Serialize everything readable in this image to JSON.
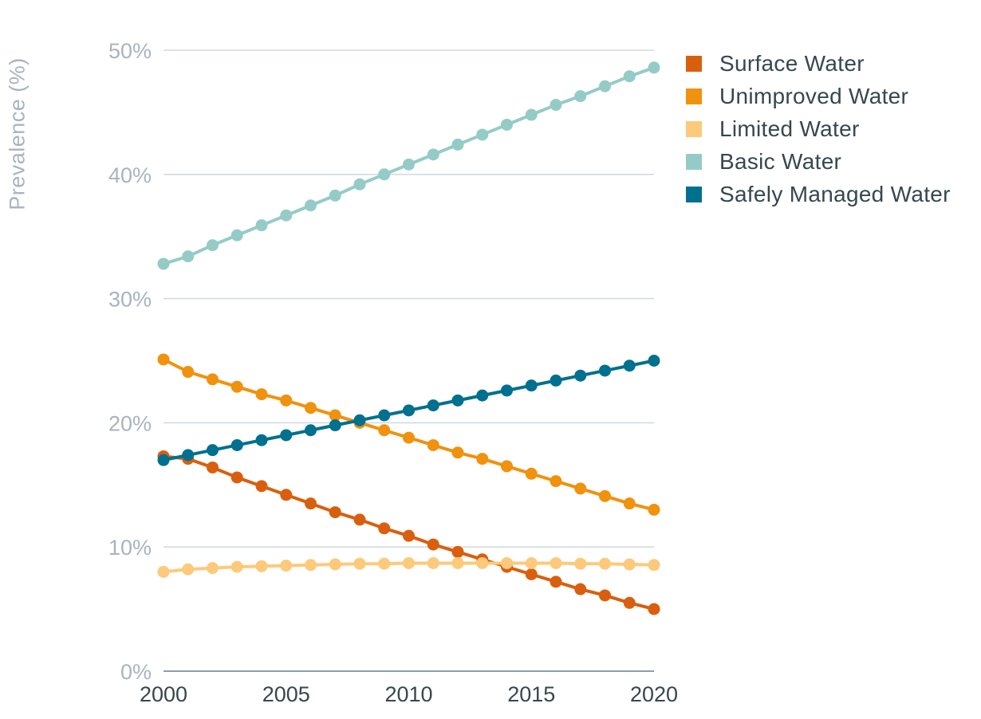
{
  "chart_data": {
    "type": "line",
    "ylabel": "Prevalence (%)",
    "xlabel": "",
    "x": [
      2000,
      2001,
      2002,
      2003,
      2004,
      2005,
      2006,
      2007,
      2008,
      2009,
      2010,
      2011,
      2012,
      2013,
      2014,
      2015,
      2016,
      2017,
      2018,
      2019,
      2020
    ],
    "xlim": [
      2000,
      2020
    ],
    "ylim": [
      0,
      50
    ],
    "x_ticks": [
      "2000",
      "2005",
      "2010",
      "2015",
      "2020"
    ],
    "y_ticks": [
      "0%",
      "10%",
      "20%",
      "30%",
      "40%",
      "50%"
    ],
    "grid": "horizontal",
    "legend_position": "right",
    "series": [
      {
        "name": "Surface Water",
        "color": "#d95f0e",
        "values": [
          17.3,
          17.1,
          16.4,
          15.6,
          14.9,
          14.2,
          13.5,
          12.8,
          12.2,
          11.5,
          10.9,
          10.2,
          9.6,
          9.0,
          8.4,
          7.8,
          7.2,
          6.6,
          6.1,
          5.5,
          5.0
        ]
      },
      {
        "name": "Unimproved Water",
        "color": "#f0920e",
        "values": [
          25.1,
          24.1,
          23.5,
          22.9,
          22.3,
          21.8,
          21.2,
          20.6,
          20.0,
          19.4,
          18.8,
          18.2,
          17.6,
          17.1,
          16.5,
          15.9,
          15.3,
          14.7,
          14.1,
          13.5,
          13.0
        ]
      },
      {
        "name": "Limited Water",
        "color": "#fdc97a",
        "values": [
          8.0,
          8.2,
          8.3,
          8.4,
          8.45,
          8.5,
          8.55,
          8.6,
          8.65,
          8.65,
          8.7,
          8.7,
          8.7,
          8.7,
          8.7,
          8.7,
          8.7,
          8.65,
          8.65,
          8.6,
          8.55
        ]
      },
      {
        "name": "Basic Water",
        "color": "#95cbc7",
        "values": [
          32.8,
          33.4,
          34.3,
          35.1,
          35.9,
          36.7,
          37.5,
          38.3,
          39.2,
          40.0,
          40.8,
          41.6,
          42.4,
          43.2,
          44.0,
          44.8,
          45.6,
          46.3,
          47.1,
          47.9,
          48.6
        ]
      },
      {
        "name": "Safely Managed Water",
        "color": "#00708f",
        "values": [
          17.0,
          17.4,
          17.8,
          18.2,
          18.6,
          19.0,
          19.4,
          19.8,
          20.2,
          20.6,
          21.0,
          21.4,
          21.8,
          22.2,
          22.6,
          23.0,
          23.4,
          23.8,
          24.2,
          24.6,
          25.0
        ]
      }
    ]
  }
}
